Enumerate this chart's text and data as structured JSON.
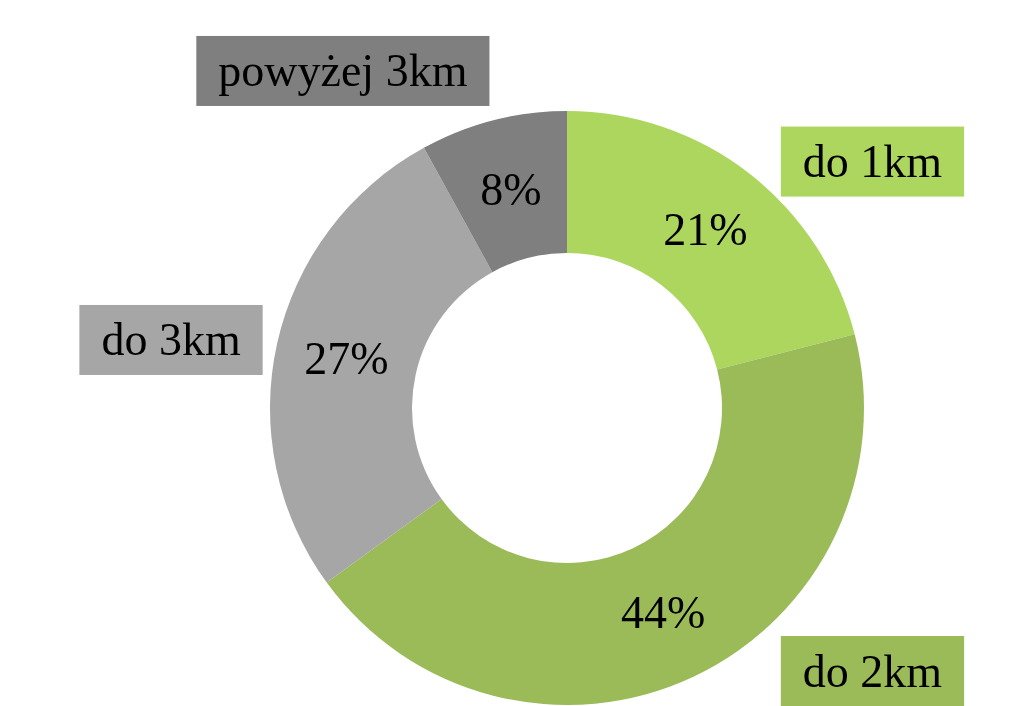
{
  "chart_data": {
    "type": "donut",
    "categories": [
      "do 1km",
      "do 2km",
      "do 3km",
      "powyżej 3km"
    ],
    "values": [
      21,
      44,
      27,
      8
    ],
    "colors": [
      "#acd65d",
      "#9bbb59",
      "#a6a6a6",
      "#7f7f7f"
    ],
    "value_labels": [
      "21%",
      "44%",
      "27%",
      "8%"
    ]
  }
}
